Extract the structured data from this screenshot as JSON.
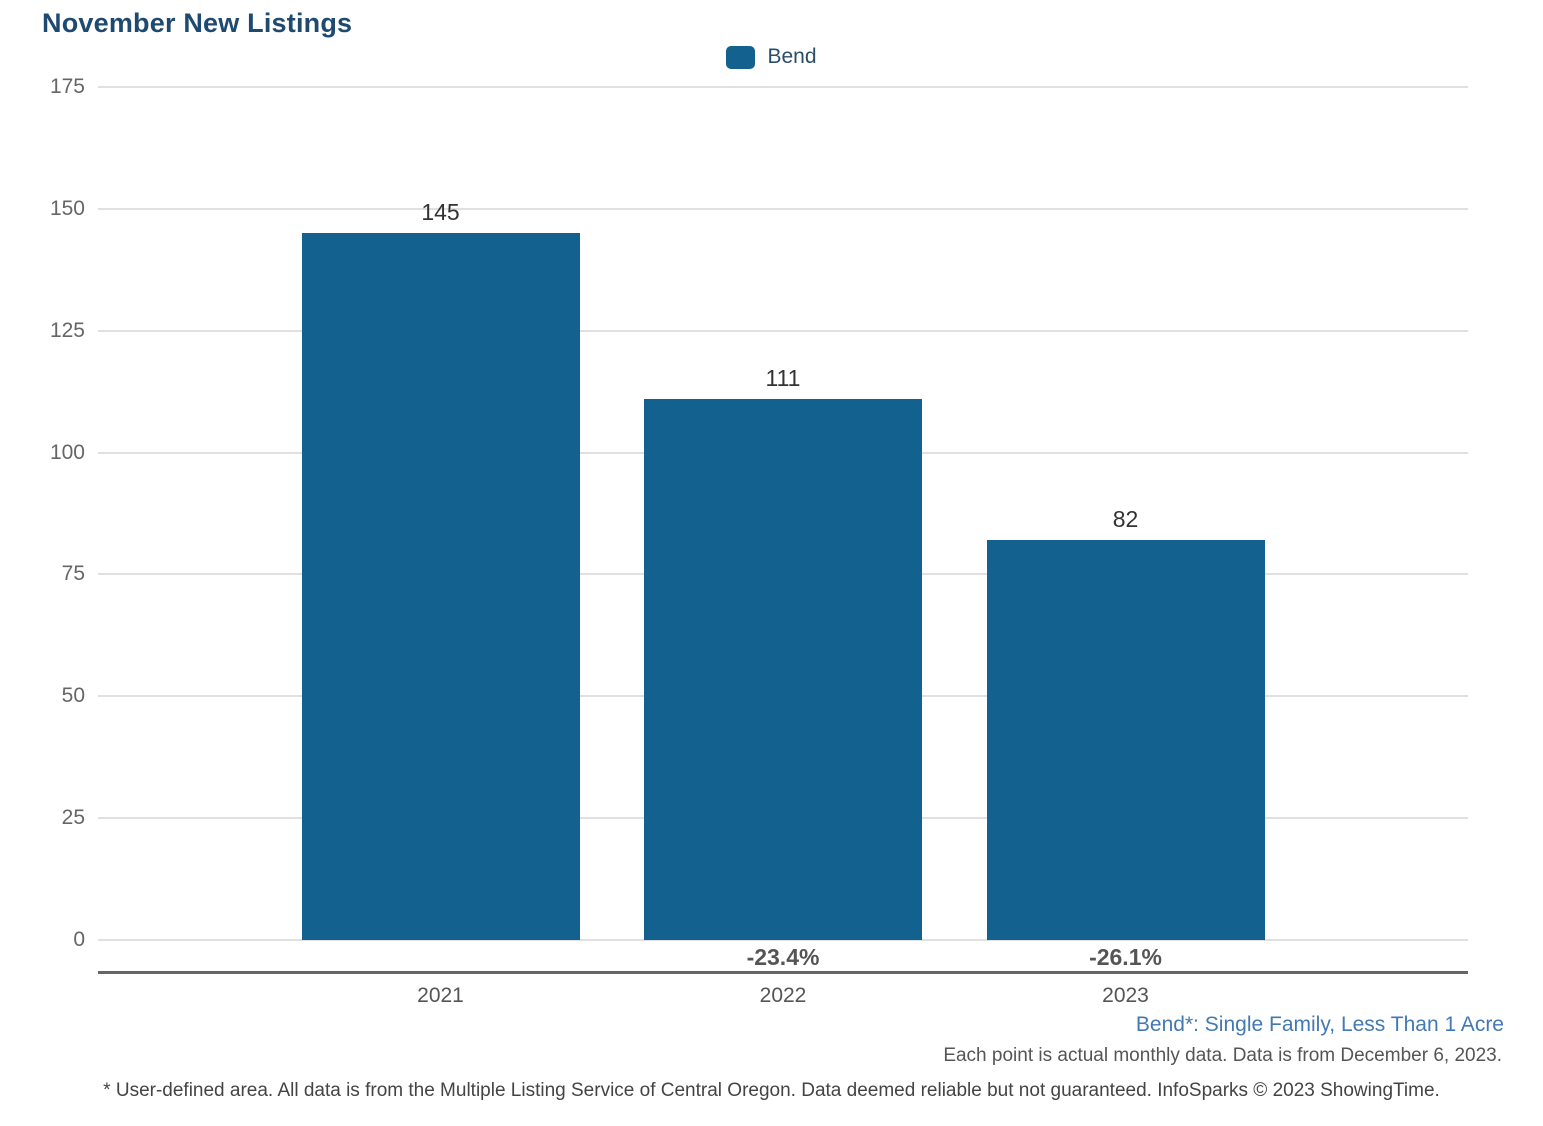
{
  "title": "November New Listings",
  "legend": {
    "items": [
      {
        "label": "Bend",
        "color": "#12618f"
      }
    ]
  },
  "chart_data": {
    "type": "bar",
    "title": "November New Listings",
    "categories": [
      "2021",
      "2022",
      "2023"
    ],
    "series": [
      {
        "name": "Bend",
        "values": [
          145,
          111,
          82
        ],
        "color": "#12618f"
      }
    ],
    "value_labels": [
      "145",
      "111",
      "82"
    ],
    "change_labels": [
      null,
      "-23.4%",
      "-26.1%"
    ],
    "xlabel": "",
    "ylabel": "",
    "ylim": [
      0,
      175
    ],
    "yticks": [
      0,
      25,
      50,
      75,
      100,
      125,
      150,
      175
    ],
    "grid": true,
    "legend_position": "top-center"
  },
  "footnotes": {
    "series_definition": "Bend*: Single Family, Less Than 1 Acre",
    "data_note": "Each point is actual monthly data. Data is from December 6, 2023.",
    "disclaimer": "* User-defined area. All data is from the Multiple Listing Service of Central Oregon. Data deemed reliable but not guaranteed. InfoSparks © 2023 ShowingTime."
  },
  "colors": {
    "bar": "#12618f",
    "title": "#1f4a70",
    "gridline": "#e0e0e0",
    "axis_line": "#666666",
    "tick_text": "#666666",
    "value_text": "#333333",
    "change_text": "#555555",
    "footnote_blue": "#4379b2"
  }
}
